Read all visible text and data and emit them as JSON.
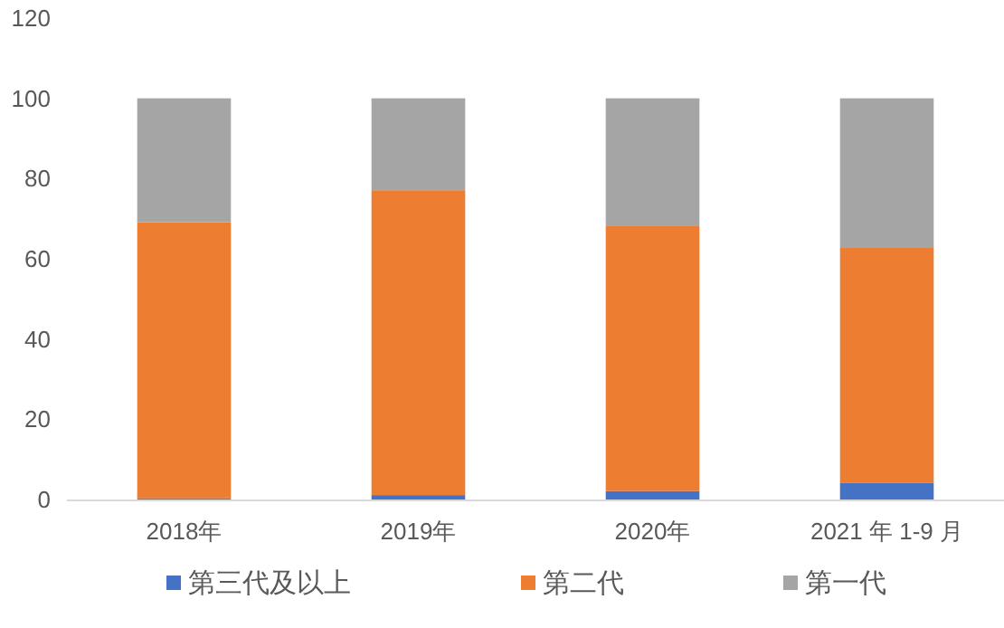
{
  "chart_data": {
    "type": "bar",
    "stacked": true,
    "categories": [
      "2018年",
      "2019年",
      "2020年",
      "2021 年 1-9 月"
    ],
    "series": [
      {
        "name": "第三代及以上",
        "color": "#4472c4",
        "values": [
          0.3,
          1.1,
          2.1,
          4.2
        ]
      },
      {
        "name": "第二代",
        "color": "#ed7d31",
        "values": [
          68.8,
          76.0,
          66.2,
          58.5
        ]
      },
      {
        "name": "第一代",
        "color": "#a5a5a5",
        "values": [
          30.9,
          22.9,
          31.7,
          37.3
        ]
      }
    ],
    "ylim": [
      0,
      120
    ],
    "yticks": [
      0,
      20,
      40,
      60,
      80,
      100,
      120
    ],
    "grid": false,
    "legend": "bottom"
  }
}
